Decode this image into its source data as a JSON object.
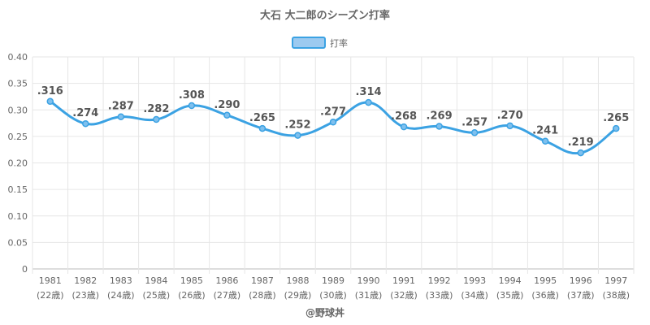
{
  "chart_data": {
    "type": "line",
    "title": "大石 大二郎のシーズン打率",
    "legend": {
      "label": "打率",
      "color": "#9ccaf0",
      "border_color": "#3ba2e3",
      "position": "top-center"
    },
    "x": [
      "1981",
      "1982",
      "1983",
      "1984",
      "1985",
      "1986",
      "1987",
      "1988",
      "1989",
      "1990",
      "1991",
      "1992",
      "1993",
      "1994",
      "1995",
      "1996",
      "1997"
    ],
    "ages": [
      "(22歳)",
      "(23歳)",
      "(24歳)",
      "(25歳)",
      "(26歳)",
      "(27歳)",
      "(28歳)",
      "(29歳)",
      "(30歳)",
      "(31歳)",
      "(32歳)",
      "(33歳)",
      "(34歳)",
      "(35歳)",
      "(36歳)",
      "(37歳)",
      "(38歳)"
    ],
    "series": [
      {
        "name": "打率",
        "values": [
          0.316,
          0.274,
          0.287,
          0.282,
          0.308,
          0.29,
          0.265,
          0.252,
          0.277,
          0.314,
          0.268,
          0.269,
          0.257,
          0.27,
          0.241,
          0.219,
          0.265
        ],
        "labels": [
          ".316",
          ".274",
          ".287",
          ".282",
          ".308",
          ".290",
          ".265",
          ".252",
          ".277",
          ".314",
          ".268",
          ".269",
          ".257",
          ".270",
          ".241",
          ".219",
          ".265"
        ],
        "color": "#3ba2e3"
      }
    ],
    "ylim": [
      0,
      0.4
    ],
    "yticks": [
      0,
      0.05,
      0.1,
      0.15,
      0.2,
      0.25,
      0.3,
      0.35,
      0.4
    ],
    "ytick_labels": [
      "0",
      "0.05",
      "0.10",
      "0.15",
      "0.20",
      "0.25",
      "0.30",
      "0.35",
      "0.40"
    ],
    "grid": true
  },
  "credit": "@野球丼"
}
